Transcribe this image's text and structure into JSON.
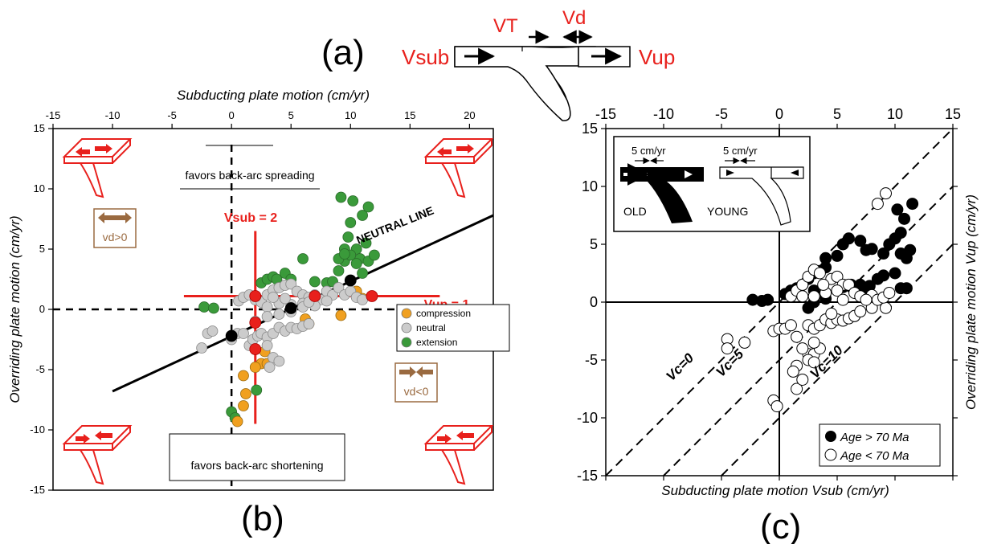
{
  "panel_a": {
    "label": "(a)",
    "v_sub": "Vsub",
    "v_t": "VT",
    "v_d": "Vd",
    "v_up": "Vup"
  },
  "panel_b": {
    "label": "(b)",
    "top_axis_label": "Subducting plate motion (cm/yr)",
    "left_axis_label": "Overriding plate motion (cm/yr)",
    "favors_spreading": "favors back-arc spreading",
    "favors_shortening": "favors back-arc shortening",
    "neutral_line_label": "NEUTRAL LINE",
    "vsub_label": "Vsub = 2",
    "vup_label": "Vup = 1",
    "vd_pos_label": "vd>0",
    "vd_neg_label": "vd<0",
    "legend": [
      "compression",
      "neutral",
      "extension"
    ],
    "colors": {
      "compression": "#f0a020",
      "neutral": "#cccccc",
      "extension": "#3a9a3a",
      "accent": "#e8201c",
      "arrow": "#9a6a40"
    }
  },
  "panel_c": {
    "label": "(c)",
    "bottom_axis_label": "Subducting plate motion Vsub (cm/yr)",
    "right_axis_label": "Overriding plate motion Vup (cm/yr)",
    "inset_scale_old": "5 cm/yr",
    "inset_scale_young": "5 cm/yr",
    "inset_old": "OLD",
    "inset_young": "YOUNG",
    "vc_labels": [
      "Vc=0",
      "Vc=5",
      "Vc=10"
    ],
    "legend": [
      "Age > 70 Ma",
      "Age < 70 Ma"
    ]
  },
  "chart_data": [
    {
      "type": "scatter",
      "panel": "b",
      "xlabel": "Subducting plate motion (cm/yr)",
      "ylabel": "Overriding plate motion (cm/yr)",
      "xlim": [
        -15,
        22
      ],
      "ylim": [
        -15,
        15
      ],
      "xticks": [
        -15,
        -10,
        -5,
        0,
        5,
        10,
        15,
        20
      ],
      "yticks": [
        -15,
        -10,
        -5,
        0,
        5,
        10,
        15
      ],
      "series": [
        {
          "name": "extension",
          "points": [
            [
              -2.3,
              0.2
            ],
            [
              -1.5,
              0.1
            ],
            [
              0,
              -8.5
            ],
            [
              0.3,
              -9
            ],
            [
              2.1,
              -6.7
            ],
            [
              2.5,
              2.2
            ],
            [
              3,
              2.5
            ],
            [
              3.5,
              2.7
            ],
            [
              3.8,
              2.5
            ],
            [
              4.5,
              3
            ],
            [
              5,
              2.5
            ],
            [
              6,
              4.2
            ],
            [
              7,
              2.3
            ],
            [
              8,
              2.2
            ],
            [
              8.5,
              2.3
            ],
            [
              9,
              3.2
            ],
            [
              9.5,
              4
            ],
            [
              9.5,
              5
            ],
            [
              9.8,
              6
            ],
            [
              10,
              7.2
            ],
            [
              10.5,
              5
            ],
            [
              10.8,
              4.2
            ],
            [
              11,
              3
            ],
            [
              11.5,
              4
            ],
            [
              12,
              4.5
            ],
            [
              9.2,
              9.3
            ],
            [
              10.2,
              9
            ],
            [
              11,
              7.8
            ],
            [
              11.5,
              8.5
            ],
            [
              10,
              4.5
            ],
            [
              9,
              4.2
            ],
            [
              10.5,
              3.8
            ],
            [
              11.3,
              5.5
            ],
            [
              9.5,
              4.6
            ]
          ]
        },
        {
          "name": "compression",
          "points": [
            [
              1,
              -5.5
            ],
            [
              1.2,
              -7
            ],
            [
              1,
              -8
            ],
            [
              0.5,
              -9.3
            ],
            [
              2.5,
              -4.5
            ],
            [
              3,
              -4.5
            ],
            [
              2.8,
              -3.5
            ],
            [
              6.2,
              -0.8
            ],
            [
              6.5,
              -1.2
            ],
            [
              9.2,
              -0.5
            ],
            [
              10.5,
              1.5
            ],
            [
              11,
              0.9
            ],
            [
              2,
              -4.8
            ]
          ]
        },
        {
          "name": "neutral",
          "points": [
            [
              -2.5,
              -3.2
            ],
            [
              -2,
              -2
            ],
            [
              -1.6,
              -1.8
            ],
            [
              0,
              -2.5
            ],
            [
              0.5,
              -2
            ],
            [
              1,
              -2
            ],
            [
              1.5,
              -3
            ],
            [
              1.8,
              -2.5
            ],
            [
              2.2,
              -2.2
            ],
            [
              2.5,
              -2
            ],
            [
              3,
              -2.3
            ],
            [
              3.5,
              -2
            ],
            [
              4,
              -1.5
            ],
            [
              4.5,
              -1.8
            ],
            [
              5,
              -1.5
            ],
            [
              5.5,
              -1.6
            ],
            [
              6,
              -1.4
            ],
            [
              6.5,
              -1.2
            ],
            [
              3,
              -3
            ],
            [
              3.5,
              -4
            ],
            [
              4,
              -4.3
            ],
            [
              3.2,
              -4.8
            ],
            [
              0.6,
              0.7
            ],
            [
              1,
              1
            ],
            [
              1.5,
              1.2
            ],
            [
              2,
              0.8
            ],
            [
              2.5,
              0.6
            ],
            [
              3,
              1.2
            ],
            [
              3.5,
              1.6
            ],
            [
              4,
              1.8
            ],
            [
              4.5,
              2
            ],
            [
              5,
              2.1
            ],
            [
              5.5,
              1.5
            ],
            [
              6,
              1.2
            ],
            [
              6.5,
              1
            ],
            [
              7,
              1.2
            ],
            [
              7.5,
              0.8
            ],
            [
              8,
              1.5
            ],
            [
              8.5,
              1.2
            ],
            [
              9,
              1.8
            ],
            [
              9.5,
              1.2
            ],
            [
              10,
              1.5
            ],
            [
              10.5,
              1
            ],
            [
              11,
              0.8
            ],
            [
              3,
              0.2
            ],
            [
              4,
              0.5
            ],
            [
              5,
              0.4
            ],
            [
              6,
              0.5
            ],
            [
              7,
              0.3
            ],
            [
              8,
              0.7
            ],
            [
              2,
              -1
            ],
            [
              3,
              -0.6
            ],
            [
              4,
              -0.4
            ],
            [
              5,
              -0.2
            ],
            [
              6,
              0.2
            ],
            [
              3.5,
              1
            ],
            [
              4.5,
              0.9
            ],
            [
              6.5,
              0.6
            ]
          ]
        },
        {
          "name": "neutral-line-markers",
          "points": [
            [
              0,
              -2.2
            ],
            [
              5,
              0.1
            ],
            [
              10,
              2.4
            ]
          ]
        },
        {
          "name": "red-markers",
          "points": [
            [
              2,
              1.1
            ],
            [
              2,
              -1.1
            ],
            [
              2,
              -3.3
            ],
            [
              7,
              1.1
            ],
            [
              11.8,
              1.1
            ]
          ]
        }
      ],
      "lines": [
        {
          "name": "neutral-line",
          "from": [
            -10,
            -6.8
          ],
          "to": [
            22,
            7.8
          ]
        },
        {
          "name": "vsub-2",
          "from": [
            2,
            -9.5
          ],
          "to": [
            2,
            6.5
          ]
        },
        {
          "name": "vup-1",
          "from": [
            -4,
            1.1
          ],
          "to": [
            17.5,
            1.1
          ]
        }
      ]
    },
    {
      "type": "scatter",
      "panel": "c",
      "xlabel": "Subducting plate motion Vsub (cm/yr)",
      "ylabel": "Overriding plate motion Vup (cm/yr)",
      "xlim": [
        -15,
        15
      ],
      "ylim": [
        -15,
        15
      ],
      "xticks": [
        -15,
        -10,
        -5,
        0,
        5,
        10,
        15
      ],
      "yticks": [
        -15,
        -10,
        -5,
        0,
        5,
        10,
        15
      ],
      "lines": [
        {
          "name": "Vc=0",
          "from": [
            -15,
            -15
          ],
          "to": [
            15,
            15
          ]
        },
        {
          "name": "Vc=5",
          "from": [
            -10,
            -15
          ],
          "to": [
            15,
            10
          ]
        },
        {
          "name": "Vc=10",
          "from": [
            -5,
            -15
          ],
          "to": [
            15,
            5
          ]
        }
      ],
      "series": [
        {
          "name": "Age > 70 Ma",
          "points": [
            [
              -2.3,
              0.2
            ],
            [
              -1.5,
              0.1
            ],
            [
              -1,
              0.2
            ],
            [
              0.5,
              0.7
            ],
            [
              1,
              1
            ],
            [
              1.5,
              1.2
            ],
            [
              2,
              1.5
            ],
            [
              2.5,
              2
            ],
            [
              3,
              2.5
            ],
            [
              3.5,
              2.7
            ],
            [
              4,
              3
            ],
            [
              4,
              3.8
            ],
            [
              5,
              4
            ],
            [
              5.5,
              5
            ],
            [
              6,
              5.5
            ],
            [
              7,
              5.3
            ],
            [
              7.5,
              4.5
            ],
            [
              8,
              4.6
            ],
            [
              9,
              4.2
            ],
            [
              9.5,
              5
            ],
            [
              10,
              5.5
            ],
            [
              10.5,
              6
            ],
            [
              10.8,
              7.2
            ],
            [
              11.5,
              8.5
            ],
            [
              10.2,
              8
            ],
            [
              10.5,
              4.2
            ],
            [
              11,
              3.8
            ],
            [
              11.3,
              4.5
            ],
            [
              10,
              2.5
            ],
            [
              9,
              2.3
            ],
            [
              8.5,
              2
            ],
            [
              10.5,
              1.2
            ],
            [
              11,
              1.2
            ],
            [
              3,
              0
            ],
            [
              4,
              0.3
            ],
            [
              2.5,
              -0.5
            ],
            [
              3,
              1
            ],
            [
              5.5,
              1.3
            ],
            [
              6.2,
              1.5
            ],
            [
              7,
              1.5
            ],
            [
              7.8,
              1.4
            ],
            [
              6.5,
              -1.2
            ],
            [
              7.5,
              1
            ]
          ]
        },
        {
          "name": "Age < 70 Ma",
          "points": [
            [
              -4.5,
              -3.2
            ],
            [
              -4.5,
              -4
            ],
            [
              -3,
              -3.5
            ],
            [
              -0.5,
              -8.5
            ],
            [
              -0.2,
              -9
            ],
            [
              -0.5,
              -2.5
            ],
            [
              0,
              -2.3
            ],
            [
              0.5,
              -2.3
            ],
            [
              1,
              -2
            ],
            [
              1.5,
              -3
            ],
            [
              1.5,
              -7.5
            ],
            [
              2,
              -6.7
            ],
            [
              1.5,
              -5.5
            ],
            [
              1.2,
              -6
            ],
            [
              2.5,
              -4.5
            ],
            [
              3,
              -4.5
            ],
            [
              3.5,
              -4
            ],
            [
              3,
              -3.5
            ],
            [
              2,
              -4
            ],
            [
              2.5,
              -2
            ],
            [
              3,
              -2.3
            ],
            [
              3.5,
              -2
            ],
            [
              4,
              -1.5
            ],
            [
              4.5,
              -1.8
            ],
            [
              5,
              -1.5
            ],
            [
              5.5,
              -1.6
            ],
            [
              6,
              -1.4
            ],
            [
              6.5,
              -1.2
            ],
            [
              7,
              -0.8
            ],
            [
              8,
              -0.5
            ],
            [
              9.2,
              -0.5
            ],
            [
              1,
              0.5
            ],
            [
              1.5,
              1
            ],
            [
              2,
              1.5
            ],
            [
              2.5,
              2.2
            ],
            [
              3,
              2.8
            ],
            [
              3.5,
              2.5
            ],
            [
              4.5,
              2
            ],
            [
              5,
              2.2
            ],
            [
              5.5,
              1.5
            ],
            [
              6,
              1.5
            ],
            [
              6.5,
              0.8
            ],
            [
              7,
              0.5
            ],
            [
              8,
              0.6
            ],
            [
              8.5,
              0.2
            ],
            [
              9,
              0.4
            ],
            [
              9.5,
              0.8
            ],
            [
              9.2,
              9.4
            ],
            [
              8.5,
              8.5
            ],
            [
              3,
              0.5
            ],
            [
              4,
              0.8
            ],
            [
              5,
              1
            ],
            [
              2,
              0.5
            ],
            [
              3.8,
              1.5
            ],
            [
              4.5,
              -1
            ],
            [
              5.5,
              0.2
            ],
            [
              7.5,
              0.2
            ],
            [
              2.5,
              -5
            ],
            [
              3,
              -5.2
            ]
          ]
        }
      ]
    }
  ]
}
